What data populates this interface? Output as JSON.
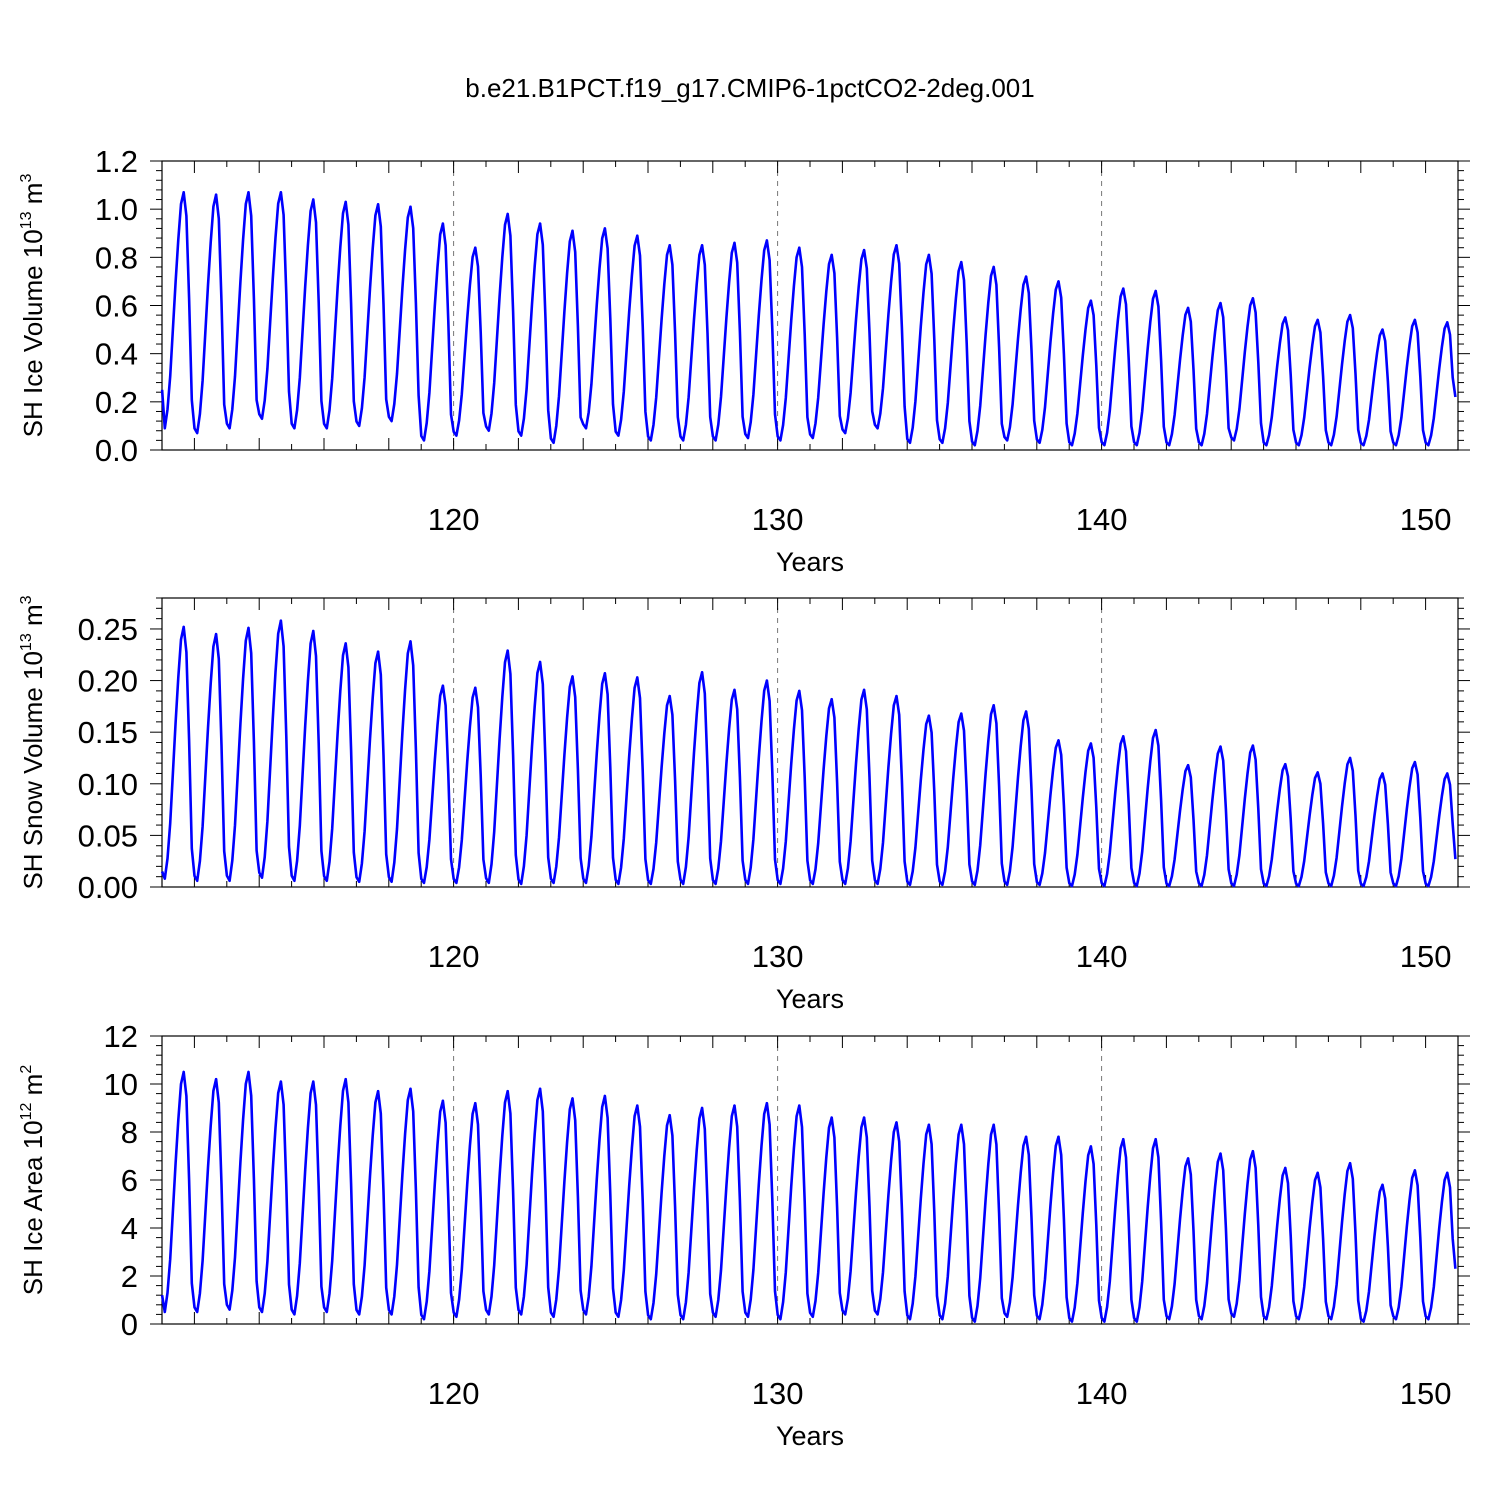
{
  "title": "b.e21.B1PCT.f19_g17.CMIP6-1pctCO2-2deg.001",
  "line_color": "#0000ff",
  "chart_data": [
    {
      "type": "line",
      "xlabel": "Years",
      "ylabel": {
        "main": "SH Ice Volume 10",
        "exp": "13",
        "unit": " m",
        "unit_exp": "3"
      },
      "xlim": [
        111,
        151
      ],
      "ylim": [
        0,
        1.2
      ],
      "xticks": [
        "120",
        "130",
        "140",
        "150"
      ],
      "yticks": [
        "0.0",
        "0.2",
        "0.4",
        "0.6",
        "0.8",
        "1.0",
        "1.2"
      ],
      "grid_x": [
        120,
        130,
        140
      ],
      "years": [
        111,
        112,
        113,
        114,
        115,
        116,
        117,
        118,
        119,
        120,
        121,
        122,
        123,
        124,
        125,
        126,
        127,
        128,
        129,
        130,
        131,
        132,
        133,
        134,
        135,
        136,
        137,
        138,
        139,
        140,
        141,
        142,
        143,
        144,
        145,
        146,
        147,
        148,
        149,
        150
      ],
      "annual_max": [
        1.07,
        1.06,
        1.07,
        1.07,
        1.04,
        1.03,
        1.02,
        1.01,
        0.94,
        0.84,
        0.98,
        0.94,
        0.91,
        0.92,
        0.89,
        0.85,
        0.85,
        0.86,
        0.87,
        0.84,
        0.81,
        0.83,
        0.85,
        0.81,
        0.78,
        0.76,
        0.72,
        0.7,
        0.62,
        0.67,
        0.66,
        0.59,
        0.61,
        0.63,
        0.55,
        0.54,
        0.56,
        0.5,
        0.54,
        0.53
      ],
      "annual_min": [
        0.09,
        0.07,
        0.09,
        0.13,
        0.09,
        0.09,
        0.1,
        0.12,
        0.04,
        0.06,
        0.08,
        0.06,
        0.03,
        0.09,
        0.06,
        0.04,
        0.04,
        0.04,
        0.05,
        0.04,
        0.05,
        0.07,
        0.09,
        0.03,
        0.03,
        0.02,
        0.04,
        0.03,
        0.02,
        0.02,
        0.02,
        0.02,
        0.02,
        0.04,
        0.02,
        0.02,
        0.02,
        0.02,
        0.02,
        0.02
      ],
      "start_value": 0.25,
      "end_value": 0.22
    },
    {
      "type": "line",
      "xlabel": "Years",
      "ylabel": {
        "main": "SH Snow Volume 10",
        "exp": "13",
        "unit": " m",
        "unit_exp": "3"
      },
      "xlim": [
        111,
        151
      ],
      "ylim": [
        0,
        0.28
      ],
      "xticks": [
        "120",
        "130",
        "140",
        "150"
      ],
      "yticks": [
        "0.00",
        "0.05",
        "0.10",
        "0.15",
        "0.20",
        "0.25"
      ],
      "grid_x": [
        120,
        130,
        140
      ],
      "years": [
        111,
        112,
        113,
        114,
        115,
        116,
        117,
        118,
        119,
        120,
        121,
        122,
        123,
        124,
        125,
        126,
        127,
        128,
        129,
        130,
        131,
        132,
        133,
        134,
        135,
        136,
        137,
        138,
        139,
        140,
        141,
        142,
        143,
        144,
        145,
        146,
        147,
        148,
        149,
        150
      ],
      "annual_max": [
        0.252,
        0.245,
        0.251,
        0.258,
        0.248,
        0.236,
        0.228,
        0.238,
        0.195,
        0.193,
        0.229,
        0.218,
        0.204,
        0.207,
        0.203,
        0.185,
        0.208,
        0.191,
        0.2,
        0.19,
        0.182,
        0.191,
        0.185,
        0.166,
        0.168,
        0.176,
        0.17,
        0.142,
        0.139,
        0.146,
        0.152,
        0.118,
        0.136,
        0.137,
        0.119,
        0.111,
        0.125,
        0.11,
        0.121,
        0.11
      ],
      "annual_min": [
        0.008,
        0.006,
        0.006,
        0.009,
        0.006,
        0.006,
        0.005,
        0.005,
        0.004,
        0.004,
        0.004,
        0.003,
        0.004,
        0.004,
        0.003,
        0.003,
        0.003,
        0.003,
        0.003,
        0.003,
        0.003,
        0.003,
        0.003,
        0.002,
        0.002,
        0.002,
        0.002,
        0.002,
        0.001,
        0.001,
        0.001,
        0.001,
        0.001,
        0.001,
        0.001,
        0.001,
        0.001,
        0.001,
        0.001,
        0.001
      ],
      "start_value": 0.015,
      "end_value": 0.027
    },
    {
      "type": "line",
      "xlabel": "Years",
      "ylabel": {
        "main": "SH Ice Area 10",
        "exp": "12",
        "unit": " m",
        "unit_exp": "2"
      },
      "xlim": [
        111,
        151
      ],
      "ylim": [
        0,
        12
      ],
      "xticks": [
        "120",
        "130",
        "140",
        "150"
      ],
      "yticks": [
        "0",
        "2",
        "4",
        "6",
        "8",
        "10",
        "12"
      ],
      "grid_x": [
        120,
        130,
        140
      ],
      "years": [
        111,
        112,
        113,
        114,
        115,
        116,
        117,
        118,
        119,
        120,
        121,
        122,
        123,
        124,
        125,
        126,
        127,
        128,
        129,
        130,
        131,
        132,
        133,
        134,
        135,
        136,
        137,
        138,
        139,
        140,
        141,
        142,
        143,
        144,
        145,
        146,
        147,
        148,
        149,
        150
      ],
      "annual_max": [
        10.5,
        10.2,
        10.5,
        10.1,
        10.1,
        10.2,
        9.7,
        9.8,
        9.3,
        9.2,
        9.7,
        9.8,
        9.4,
        9.5,
        9.1,
        8.7,
        9.0,
        9.1,
        9.2,
        9.1,
        8.6,
        8.6,
        8.4,
        8.3,
        8.3,
        8.3,
        7.8,
        7.8,
        7.4,
        7.7,
        7.7,
        6.9,
        7.1,
        7.2,
        6.5,
        6.3,
        6.7,
        5.8,
        6.4,
        6.3
      ],
      "annual_min": [
        0.5,
        0.5,
        0.6,
        0.5,
        0.4,
        0.5,
        0.4,
        0.4,
        0.2,
        0.3,
        0.4,
        0.4,
        0.3,
        0.4,
        0.3,
        0.2,
        0.2,
        0.3,
        0.3,
        0.2,
        0.3,
        0.4,
        0.4,
        0.2,
        0.2,
        0.1,
        0.3,
        0.2,
        0.1,
        0.1,
        0.1,
        0.2,
        0.2,
        0.3,
        0.2,
        0.2,
        0.2,
        0.1,
        0.2,
        0.2
      ],
      "start_value": 1.2,
      "end_value": 2.3
    }
  ]
}
